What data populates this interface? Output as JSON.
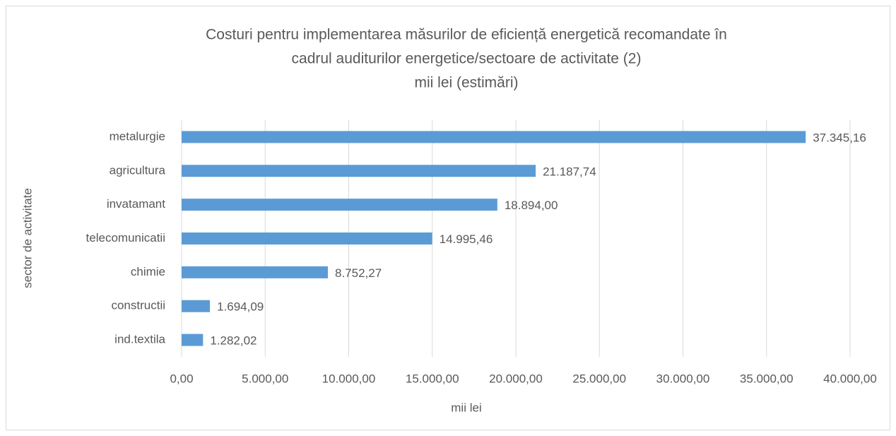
{
  "chart_data": {
    "type": "barh",
    "title": [
      "Costuri pentru implementarea măsurilor de eficiență energetică recomandate în",
      "cadrul auditurilor energetice/sectoare de activitate (2)",
      "mii lei (estimări)"
    ],
    "x_label": "mii lei",
    "y_label": "sector de activitate",
    "categories": [
      "metalurgie",
      "agricultura",
      "invatamant",
      "telecomunicatii",
      "chimie",
      "constructii",
      "ind.textila"
    ],
    "values": [
      37345.16,
      21187.74,
      18894.0,
      14995.46,
      8752.27,
      1694.09,
      1282.02
    ],
    "value_labels": [
      "37.345,16",
      "21.187,74",
      "18.894,00",
      "14.995,46",
      "8.752,27",
      "1.694,09",
      "1.282,02"
    ],
    "color": "#5b9bd5",
    "xlim": [
      0,
      40000
    ],
    "xticks": [
      {
        "value": 0,
        "label": "0,00"
      },
      {
        "value": 5000,
        "label": "5.000,00"
      },
      {
        "value": 10000,
        "label": "10.000,00"
      },
      {
        "value": 15000,
        "label": "15.000,00"
      },
      {
        "value": 20000,
        "label": "20.000,00"
      },
      {
        "value": 25000,
        "label": "25.000,00"
      },
      {
        "value": 30000,
        "label": "30.000,00"
      },
      {
        "value": 35000,
        "label": "35.000,00"
      },
      {
        "value": 40000,
        "label": "40.000,00"
      }
    ],
    "grid": true
  }
}
